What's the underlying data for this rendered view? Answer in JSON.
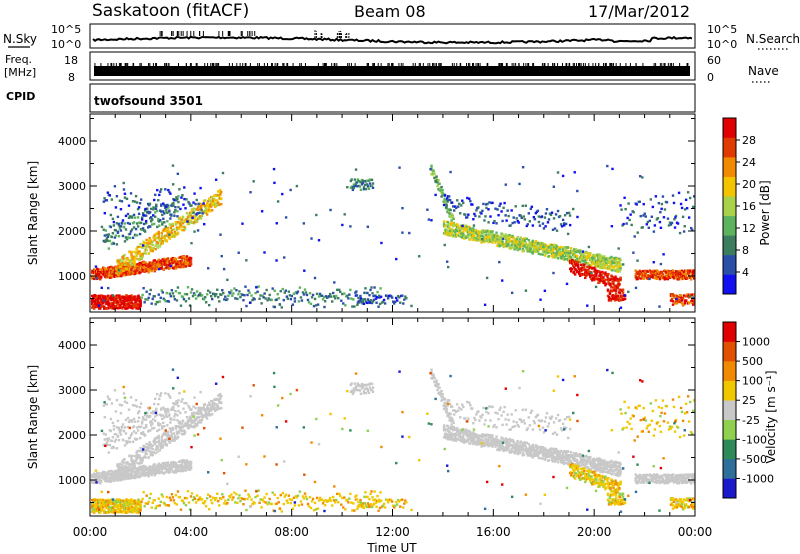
{
  "header": {
    "station": "Saskatoon (fitACF)",
    "beam": "Beam 08",
    "date": "17/Mar/2012"
  },
  "side_labels": {
    "nsky": "N.Sky",
    "nsearch": "N.Search",
    "freq_line1": "Freq.",
    "freq_line2": "[MHz]",
    "nave": "Nave",
    "cpid": "CPID"
  },
  "top_panels": {
    "noise_ticks_left": [
      "10^5",
      "10^0"
    ],
    "noise_ticks_right": [
      "10^5",
      "10^0"
    ],
    "freq_ticks_left": [
      "18",
      "8"
    ],
    "nave_ticks_right": [
      "60",
      "0"
    ],
    "cpid_text": "twofsound 3501"
  },
  "chart_data": [
    {
      "type": "heatmap",
      "name": "Power",
      "ylabel": "Slant Range [km]",
      "ylim": [
        200,
        4600
      ],
      "yticks": [
        "1000",
        "2000",
        "3000",
        "4000"
      ],
      "xlim_hours": [
        0,
        24
      ],
      "colorbar_label": "Power [dB]",
      "colorbar_ticks": [
        "4",
        "8",
        "12",
        "16",
        "20",
        "24",
        "28"
      ],
      "colorbar_range": [
        0,
        32
      ],
      "colorbar_colors": [
        "#1010f0",
        "#2a4fa8",
        "#3d7d5f",
        "#5db35d",
        "#a8d24a",
        "#f5c400",
        "#f08a00",
        "#e03a00",
        "#e00000"
      ],
      "colorbar_bounds": [
        0,
        4,
        8,
        12,
        16,
        20,
        24,
        28,
        32
      ]
    },
    {
      "type": "heatmap",
      "name": "Velocity",
      "ylabel": "Slant Range [km]",
      "ylim": [
        200,
        4600
      ],
      "yticks": [
        "1000",
        "2000",
        "3000",
        "4000"
      ],
      "xlim_hours": [
        0,
        24
      ],
      "colorbar_label": "Velocity [m s⁻¹]",
      "colorbar_ticks": [
        "1000",
        "500",
        "100",
        "25",
        "-25",
        "-100",
        "-500",
        "-1000"
      ],
      "colorbar_colors": [
        "#1a1acc",
        "#2d6e9a",
        "#2e8b57",
        "#8fd14f",
        "#c8c8c8",
        "#f0c800",
        "#f08a00",
        "#e05000",
        "#e00000"
      ]
    }
  ],
  "x_axis": {
    "label": "Time UT",
    "ticks": [
      "00:00",
      "04:00",
      "08:00",
      "12:00",
      "16:00",
      "20:00",
      "00:00"
    ]
  }
}
